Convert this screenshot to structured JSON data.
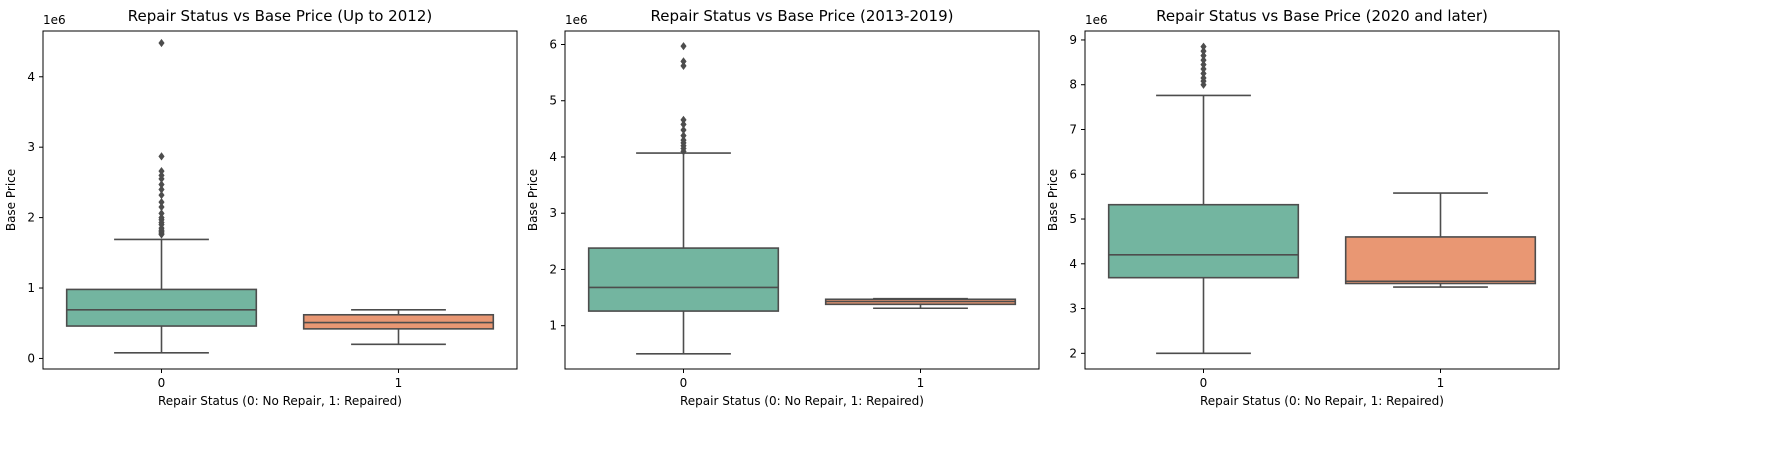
{
  "chart_data": [
    {
      "type": "boxplot",
      "title": "Repair Status vs Base Price (Up to 2012)",
      "xlabel": "Repair Status (0: No Repair, 1: Repaired)",
      "ylabel": "Base Price",
      "scale_label": "1e6",
      "categories": [
        "0",
        "1"
      ],
      "yticks": [
        "0",
        "1",
        "2",
        "3",
        "4"
      ],
      "ylim": [
        -0.15,
        4.65
      ],
      "colors": [
        "#73b5a0",
        "#e99773"
      ],
      "boxes": [
        {
          "category": "0",
          "whisker_low": 0.08,
          "q1": 0.46,
          "median": 0.69,
          "q3": 0.98,
          "whisker_high": 1.69,
          "outliers": [
            1.76,
            1.78,
            1.8,
            1.82,
            1.85,
            1.9,
            1.93,
            1.97,
            2.0,
            2.06,
            2.15,
            2.22,
            2.32,
            2.4,
            2.47,
            2.55,
            2.6,
            2.66,
            2.87,
            4.48
          ]
        },
        {
          "category": "1",
          "whisker_low": 0.2,
          "q1": 0.42,
          "median": 0.51,
          "q3": 0.62,
          "whisker_high": 0.69,
          "outliers": []
        }
      ]
    },
    {
      "type": "boxplot",
      "title": "Repair Status vs Base Price (2013-2019)",
      "xlabel": "Repair Status (0: No Repair, 1: Repaired)",
      "ylabel": "Base Price",
      "scale_label": "1e6",
      "categories": [
        "0",
        "1"
      ],
      "yticks": [
        "1",
        "2",
        "3",
        "4",
        "5",
        "6"
      ],
      "ylim": [
        0.23,
        6.24
      ],
      "colors": [
        "#73b5a0",
        "#e99773"
      ],
      "boxes": [
        {
          "category": "0",
          "whisker_low": 0.5,
          "q1": 1.26,
          "median": 1.68,
          "q3": 2.38,
          "whisker_high": 4.07,
          "outliers": [
            4.1,
            4.15,
            4.2,
            4.25,
            4.3,
            4.38,
            4.48,
            4.58,
            4.66,
            5.62,
            5.7,
            5.97
          ]
        },
        {
          "category": "1",
          "whisker_low": 1.31,
          "q1": 1.38,
          "median": 1.43,
          "q3": 1.47,
          "whisker_high": 1.48,
          "outliers": []
        }
      ]
    },
    {
      "type": "boxplot",
      "title": "Repair Status vs Base Price (2020 and later)",
      "xlabel": "Repair Status (0: No Repair, 1: Repaired)",
      "ylabel": "Base Price",
      "scale_label": "1e6",
      "categories": [
        "0",
        "1"
      ],
      "yticks": [
        "2",
        "3",
        "4",
        "5",
        "6",
        "7",
        "8",
        "9"
      ],
      "ylim": [
        1.65,
        9.2
      ],
      "colors": [
        "#73b5a0",
        "#e99773"
      ],
      "boxes": [
        {
          "category": "0",
          "whisker_low": 2.0,
          "q1": 3.69,
          "median": 4.2,
          "q3": 5.32,
          "whisker_high": 7.76,
          "outliers": [
            8.0,
            8.08,
            8.15,
            8.25,
            8.35,
            8.45,
            8.55,
            8.65,
            8.75,
            8.85
          ]
        },
        {
          "category": "1",
          "whisker_low": 3.48,
          "q1": 3.56,
          "median": 3.61,
          "q3": 4.6,
          "whisker_high": 5.58,
          "outliers": []
        }
      ]
    }
  ]
}
